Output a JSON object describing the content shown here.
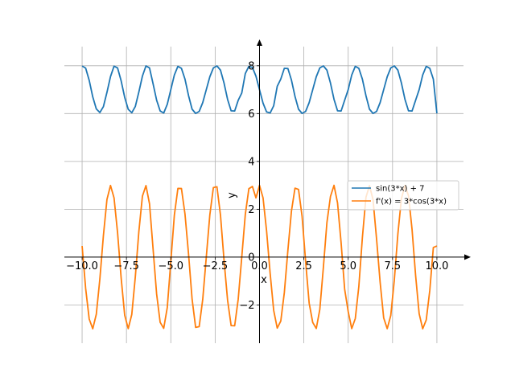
{
  "chart_data": {
    "type": "line",
    "title": "",
    "xlabel": "x",
    "ylabel": "y",
    "xlim": [
      -11,
      11.5
    ],
    "ylim": [
      -3.6,
      8.8
    ],
    "grid": true,
    "legend_position": "center-right",
    "x_ticks": [
      -10.0,
      -7.5,
      -5.0,
      -2.5,
      0.0,
      2.5,
      5.0,
      7.5,
      10.0
    ],
    "x_tick_labels": [
      "−10.0",
      "−7.5",
      "−5.0",
      "−2.5",
      "0.0",
      "2.5",
      "5.0",
      "7.5",
      "10.0"
    ],
    "y_ticks": [
      -2,
      0,
      2,
      4,
      6,
      8
    ],
    "y_tick_labels": [
      "−2",
      "0",
      "2",
      "4",
      "6",
      "8"
    ],
    "x": [
      -10.0,
      -9.8,
      -9.6,
      -9.4,
      -9.2,
      -9.0,
      -8.8,
      -8.6,
      -8.4,
      -8.2,
      -8.0,
      -7.8,
      -7.6,
      -7.4,
      -7.2,
      -7.0,
      -6.8,
      -6.6,
      -6.4,
      -6.2,
      -6.0,
      -5.8,
      -5.6,
      -5.4,
      -5.2,
      -5.0,
      -4.8,
      -4.6,
      -4.4,
      -4.2,
      -4.0,
      -3.8,
      -3.6,
      -3.4,
      -3.2,
      -3.0,
      -2.8,
      -2.6,
      -2.4,
      -2.2,
      -2.0,
      -1.8,
      -1.6,
      -1.4,
      -1.2,
      -1.0,
      -0.8,
      -0.6,
      -0.4,
      -0.2,
      0.0,
      0.2,
      0.4,
      0.6,
      0.8,
      1.0,
      1.2,
      1.4,
      1.6,
      1.8,
      2.0,
      2.2,
      2.4,
      2.6,
      2.8,
      3.0,
      3.2,
      3.4,
      3.6,
      3.8,
      4.0,
      4.2,
      4.4,
      4.6,
      4.8,
      5.0,
      5.2,
      5.4,
      5.6,
      5.8,
      6.0,
      6.2,
      6.4,
      6.6,
      6.8,
      7.0,
      7.2,
      7.4,
      7.6,
      7.8,
      8.0,
      8.2,
      8.4,
      8.6,
      8.8,
      9.0,
      9.2,
      9.4,
      9.6,
      9.8,
      10.0
    ],
    "series": [
      {
        "name": "sin(3*x) + 7",
        "color": "#1f77b4",
        "values": [
          7.988,
          7.901,
          7.389,
          6.699,
          6.194,
          6.044,
          6.291,
          6.888,
          7.547,
          7.982,
          7.906,
          7.37,
          6.679,
          6.178,
          6.035,
          6.3,
          6.907,
          7.569,
          7.994,
          7.908,
          7.249,
          6.562,
          6.109,
          6.024,
          6.387,
          7.0,
          7.613,
          7.976,
          7.891,
          7.438,
          6.751,
          6.183,
          6.006,
          6.09,
          6.46,
          7.0,
          7.54,
          7.91,
          7.994,
          7.817,
          7.279,
          6.595,
          6.117,
          6.108,
          6.557,
          6.859,
          7.675,
          7.974,
          7.932,
          7.565,
          7.0,
          6.435,
          6.068,
          6.026,
          6.325,
          7.141,
          7.443,
          7.892,
          7.883,
          7.405,
          6.721,
          6.183,
          6.006,
          6.09,
          6.46,
          7.0,
          7.54,
          7.91,
          7.994,
          7.817,
          7.279,
          6.595,
          6.117,
          6.108,
          6.557,
          7.0,
          7.613,
          7.976,
          7.891,
          7.438,
          6.751,
          6.183,
          6.006,
          6.09,
          6.46,
          7.0,
          7.54,
          7.91,
          7.994,
          7.817,
          7.279,
          6.595,
          6.117,
          6.108,
          6.557,
          7.0,
          7.613,
          7.976,
          7.891,
          7.438,
          6.012
        ]
      },
      {
        "name": "f'(x) = 3*cos(3*x)",
        "color": "#ff7f0e",
        "values": [
          0.463,
          -1.314,
          -2.592,
          -2.997,
          -2.39,
          -0.917,
          0.897,
          2.408,
          2.995,
          2.476,
          1.011,
          -0.866,
          -2.43,
          -2.991,
          -2.399,
          -0.82,
          1.08,
          2.549,
          2.989,
          2.229,
          0.345,
          -1.541,
          -2.729,
          -2.979,
          -2.114,
          -0.193,
          1.754,
          2.871,
          2.866,
          1.797,
          0.126,
          -1.757,
          -2.941,
          -2.906,
          -1.765,
          0.0,
          1.765,
          2.906,
          2.941,
          1.757,
          -0.126,
          -1.797,
          -2.866,
          -2.871,
          -1.754,
          -0.003,
          1.784,
          2.858,
          2.953,
          2.476,
          3.0,
          2.476,
          1.087,
          -0.681,
          -2.227,
          -2.97,
          -2.674,
          -1.483,
          0.285,
          1.918,
          2.881,
          2.829,
          1.703,
          -0.183,
          -1.928,
          -2.733,
          -2.986,
          -2.189,
          -0.435,
          1.442,
          2.532,
          3.0,
          2.262,
          0.601,
          -1.339,
          -2.279,
          -2.991,
          -2.571,
          -1.224,
          0.822,
          2.498,
          2.985,
          2.403,
          0.755,
          -1.047,
          -2.542,
          -2.993,
          -2.441,
          -0.957,
          0.966,
          2.446,
          2.997,
          2.564,
          1.155,
          -0.768,
          -2.367,
          -2.998,
          -2.628,
          -1.389,
          0.401,
          0.463
        ]
      }
    ]
  }
}
